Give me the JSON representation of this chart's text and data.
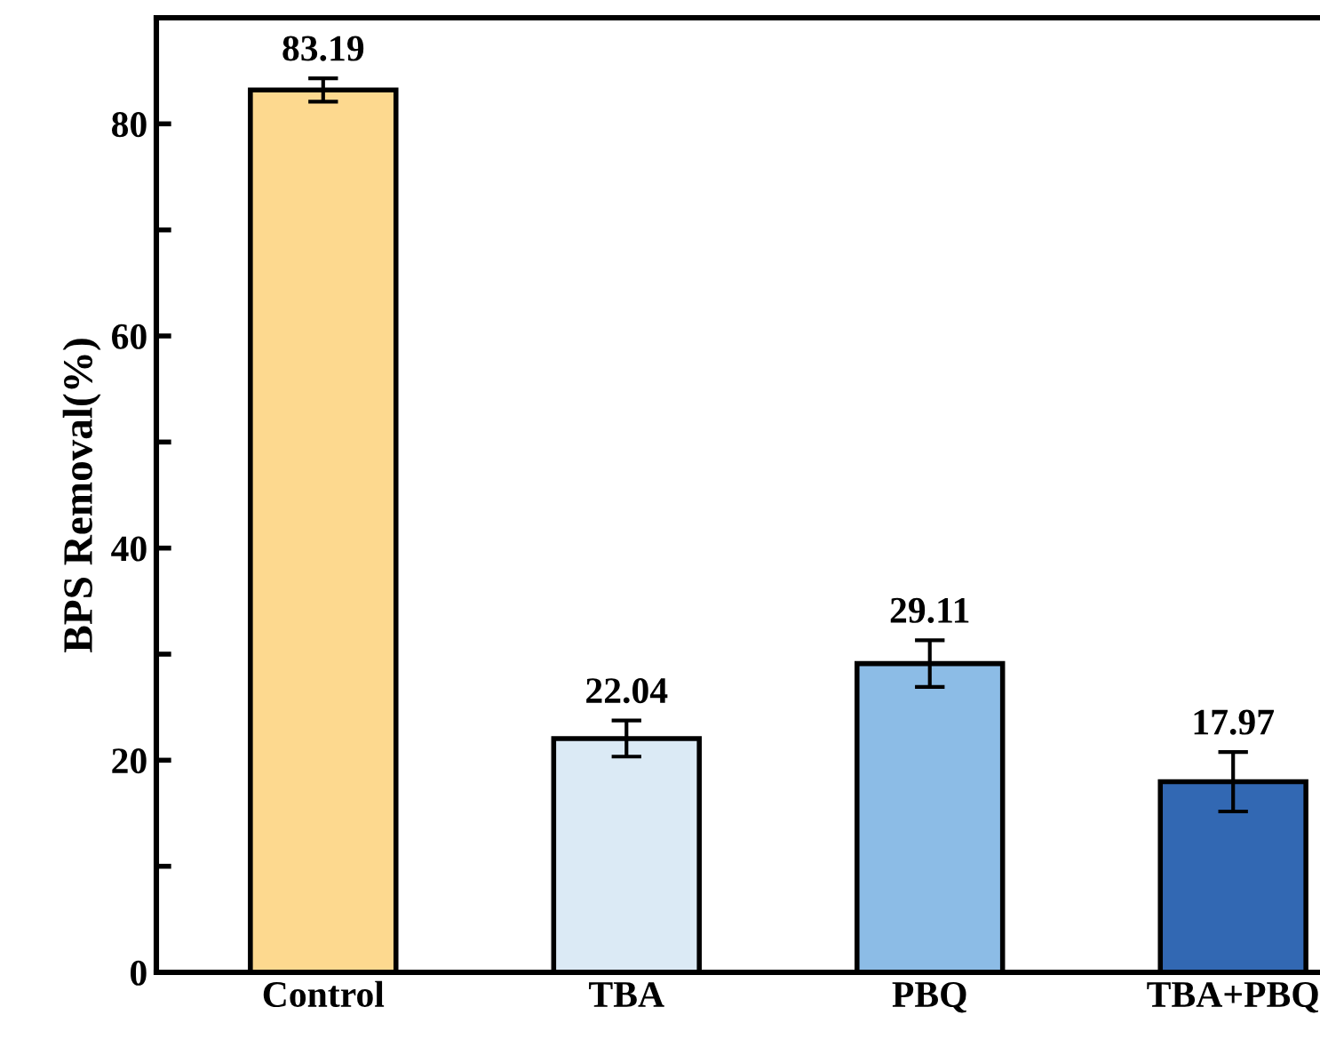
{
  "chart_data": {
    "type": "bar",
    "ylabel": "BPS Removal(%)",
    "categories": [
      "Control",
      "TBA",
      "PBQ",
      "TBA+PBQ"
    ],
    "values": [
      83.19,
      22.04,
      29.11,
      17.97
    ],
    "colors": [
      "#fdd98f",
      "#dbeaf5",
      "#8cbce6",
      "#3268b3"
    ],
    "errors": [
      1.1,
      1.7,
      2.2,
      2.8
    ],
    "data_labels": true,
    "ylim": [
      0,
      90
    ],
    "yticks": [
      0,
      {
        "value": 10,
        "label": null
      },
      20,
      {
        "value": 30,
        "label": null
      },
      40,
      {
        "value": 50,
        "label": null
      },
      60,
      {
        "value": 70,
        "label": null
      },
      80
    ],
    "grid": false,
    "legend": false
  }
}
